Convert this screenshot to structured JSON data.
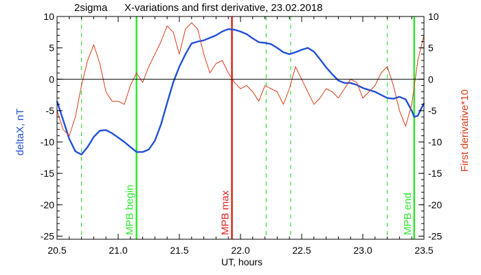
{
  "chart_data": {
    "type": "line",
    "title": "X-variations and first derivative, 23.02.2018",
    "corner_label": "2sigma",
    "xlabel": "UT, hours",
    "ylabel_left": "deltaX, nT",
    "ylabel_right": "First derivative*10",
    "xlim": [
      20.5,
      23.5
    ],
    "ylim": [
      -25.5,
      10
    ],
    "xticks": [
      20.5,
      21.0,
      21.5,
      22.0,
      22.5,
      23.0,
      23.5
    ],
    "xtick_labels": [
      "20.5",
      "21.0",
      "21.5",
      "22.0",
      "22.5",
      "23.0",
      "23.5"
    ],
    "yticks": [
      10,
      5,
      0,
      -5,
      -10,
      -15,
      -20,
      -25
    ],
    "ytick_labels": [
      "10",
      "5",
      "0",
      "-5",
      "-10",
      "-15",
      "-20",
      "-25"
    ],
    "zero_line": true,
    "colors": {
      "deltaX": "#1f4fd8",
      "derivative": "#d83a1a",
      "mpb_boundary": "#2ee82e",
      "mpb_max": "#e02020",
      "dashed": "#3ddc3d"
    },
    "series": [
      {
        "axis": "left",
        "color": "#1f4fd8",
        "x": [
          20.5,
          20.55,
          20.6,
          20.65,
          20.7,
          20.75,
          20.8,
          20.85,
          20.9,
          20.95,
          21.0,
          21.05,
          21.1,
          21.15,
          21.2,
          21.25,
          21.3,
          21.35,
          21.4,
          21.45,
          21.5,
          21.55,
          21.6,
          21.65,
          21.7,
          21.75,
          21.8,
          21.85,
          21.9,
          21.95,
          22.0,
          22.05,
          22.1,
          22.15,
          22.2,
          22.25,
          22.3,
          22.35,
          22.4,
          22.45,
          22.5,
          22.55,
          22.6,
          22.65,
          22.7,
          22.75,
          22.8,
          22.85,
          22.9,
          22.95,
          23.0,
          23.05,
          23.1,
          23.15,
          23.2,
          23.25,
          23.3,
          23.35,
          23.4,
          23.42,
          23.45,
          23.5
        ],
        "values": [
          -3.5,
          -6.5,
          -9.5,
          -11.5,
          -12.0,
          -10.8,
          -9.2,
          -8.2,
          -8.1,
          -8.6,
          -9.3,
          -10.0,
          -10.8,
          -11.6,
          -11.6,
          -11.2,
          -9.8,
          -7.2,
          -3.8,
          -0.5,
          2.0,
          4.0,
          5.7,
          6.0,
          6.2,
          6.6,
          7.0,
          7.6,
          8.0,
          7.9,
          7.6,
          7.2,
          6.5,
          5.9,
          5.8,
          5.6,
          5.0,
          4.3,
          4.0,
          4.3,
          4.7,
          5.0,
          4.4,
          3.2,
          1.9,
          0.8,
          -0.2,
          -0.6,
          -0.6,
          -0.9,
          -1.4,
          -1.7,
          -2.0,
          -2.5,
          -3.0,
          -3.1,
          -2.8,
          -3.2,
          -5.0,
          -6.0,
          -5.8,
          -3.8
        ]
      },
      {
        "axis": "right",
        "color": "#d83a1a",
        "x": [
          20.5,
          20.55,
          20.6,
          20.65,
          20.7,
          20.75,
          20.8,
          20.85,
          20.9,
          20.95,
          21.0,
          21.05,
          21.1,
          21.15,
          21.2,
          21.25,
          21.3,
          21.35,
          21.4,
          21.45,
          21.5,
          21.55,
          21.6,
          21.65,
          21.7,
          21.75,
          21.8,
          21.85,
          21.9,
          21.95,
          22.0,
          22.05,
          22.1,
          22.15,
          22.2,
          22.25,
          22.3,
          22.35,
          22.4,
          22.45,
          22.5,
          22.55,
          22.6,
          22.65,
          22.7,
          22.75,
          22.8,
          22.85,
          22.9,
          22.95,
          23.0,
          23.05,
          23.1,
          23.15,
          23.2,
          23.25,
          23.3,
          23.35,
          23.4,
          23.45,
          23.5
        ],
        "values": [
          -5.0,
          -8.0,
          -9.0,
          -6.0,
          -1.0,
          3.0,
          5.5,
          2.5,
          -2.0,
          -3.5,
          -3.5,
          -4.0,
          -1.0,
          1.0,
          -0.5,
          2.0,
          4.0,
          6.0,
          8.5,
          7.5,
          4.0,
          8.0,
          9.0,
          8.0,
          4.0,
          1.0,
          2.5,
          3.0,
          1.0,
          -0.5,
          -1.5,
          -1.0,
          -2.0,
          -3.5,
          -1.0,
          -1.5,
          -2.0,
          -4.0,
          -1.5,
          2.0,
          0.0,
          -2.0,
          -4.0,
          -3.0,
          -1.5,
          -2.0,
          -3.0,
          -1.5,
          0.0,
          -0.5,
          -3.0,
          -2.0,
          -1.0,
          1.0,
          2.0,
          -1.0,
          -5.0,
          -7.5,
          -4.0,
          3.0,
          7.0
        ]
      }
    ],
    "vertical_markers": [
      {
        "x": 21.15,
        "style": "solid",
        "color": "#2ee82e",
        "label": "MPB begin"
      },
      {
        "x": 21.93,
        "style": "solid",
        "color": "#e02020",
        "label": "MPB max"
      },
      {
        "x": 23.42,
        "style": "solid",
        "color": "#2ee82e",
        "label": "MPB end"
      },
      {
        "x": 20.7,
        "style": "dashed",
        "color": "#3ddc3d",
        "label": ""
      },
      {
        "x": 22.21,
        "style": "dashed",
        "color": "#3ddc3d",
        "label": ""
      },
      {
        "x": 22.41,
        "style": "dashed",
        "color": "#3ddc3d",
        "label": ""
      },
      {
        "x": 23.2,
        "style": "dashed",
        "color": "#3ddc3d",
        "label": ""
      }
    ]
  }
}
